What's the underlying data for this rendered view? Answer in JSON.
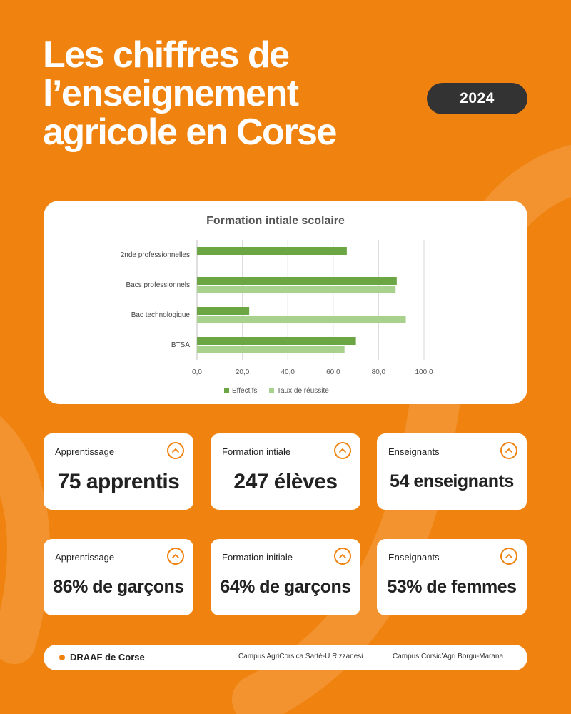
{
  "header": {
    "title_lines": [
      "Les chiffres de",
      "l’enseignement",
      "agricole en Corse"
    ],
    "year": "2024"
  },
  "colors": {
    "background": "#F0830F",
    "effectifs": "#6BA544",
    "taux": "#A9D18E",
    "badge": "#333333"
  },
  "chart_data": {
    "type": "bar",
    "orientation": "horizontal",
    "title": "Formation  intiale  scolaire",
    "categories": [
      "2nde professionnelles",
      "Bacs professionnels",
      "Bac technologique",
      "BTSA"
    ],
    "series": [
      {
        "name": "Effectifs",
        "values": [
          66,
          88,
          23,
          70
        ]
      },
      {
        "name": "Taux de réussite",
        "values": [
          null,
          87.5,
          92,
          65
        ]
      }
    ],
    "xlim": [
      0,
      100
    ],
    "ticks": [
      "0,0",
      "20,0",
      "40,0",
      "60,0",
      "80,0",
      "100,0"
    ],
    "grid": true,
    "legend": "bottom"
  },
  "stats": [
    {
      "label": "Apprentissage",
      "value": "75 apprentis",
      "icon": "chevron-up-circle-icon"
    },
    {
      "label": "Formation intiale",
      "value": "247 élèves",
      "icon": "chevron-up-circle-icon"
    },
    {
      "label": "Enseignants",
      "value": "54 enseignants",
      "icon": "chevron-up-circle-icon"
    },
    {
      "label": "Apprentissage",
      "value": "86% de garçons",
      "icon": "chevron-up-circle-icon"
    },
    {
      "label": "Formation initiale",
      "value": "64% de garçons",
      "icon": "chevron-up-circle-icon"
    },
    {
      "label": "Enseignants",
      "value": "53% de femmes",
      "icon": "chevron-up-circle-icon"
    }
  ],
  "footer": {
    "org": "DRAAF de Corse",
    "campus1": "Campus AgriCorsica Sartè-U Rizzanesi",
    "campus2": "Campus Corsic’Agri Borgu-Marana"
  }
}
